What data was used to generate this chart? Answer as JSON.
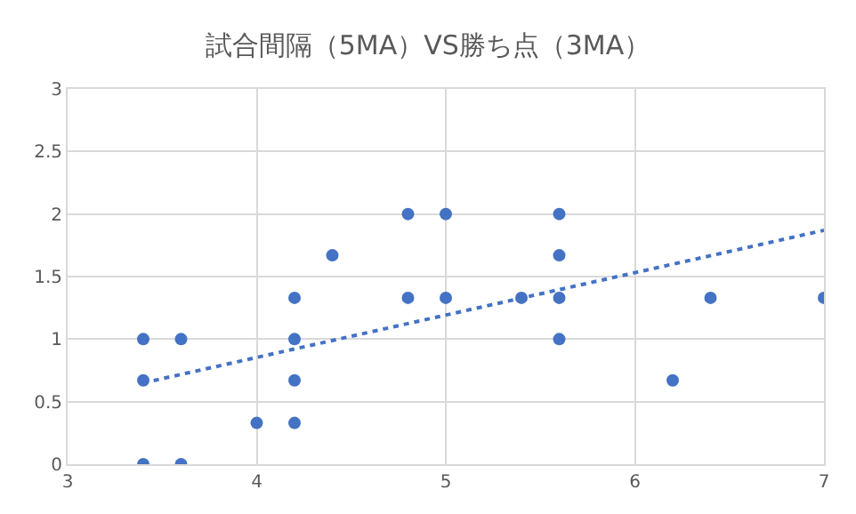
{
  "chart_data": {
    "type": "scatter",
    "title": "試合間隔（5MA）VS勝ち点（3MA）",
    "x": [
      3.4,
      3.4,
      3.4,
      3.6,
      3.6,
      4,
      4.2,
      4.2,
      4.2,
      4.2,
      4.4,
      4.8,
      4.8,
      5,
      5,
      5.4,
      5.6,
      5.6,
      5.6,
      5.6,
      6.2,
      6.4,
      7
    ],
    "series": [
      {
        "color": "#4472c4",
        "marker": "circle",
        "values": [
          1,
          0.67,
          0,
          1,
          0,
          0.33,
          1.33,
          1,
          0.67,
          0.33,
          1.67,
          2,
          1.33,
          2,
          1.33,
          1.33,
          2,
          1.67,
          1.33,
          1,
          0.67,
          1.33,
          1.33
        ]
      },
      {
        "type": "line",
        "color": "#4472c4",
        "line_style": "dotted",
        "marker": "none",
        "x": [
          3.4,
          7
        ],
        "values": [
          0.65,
          1.87
        ]
      }
    ],
    "xlim": [
      3,
      7
    ],
    "xticks": [
      3,
      4,
      5,
      6,
      7
    ],
    "ylim": [
      0,
      3
    ],
    "yticks": [
      0,
      0.5,
      1,
      1.5,
      2,
      2.5,
      3
    ],
    "grid": true
  }
}
